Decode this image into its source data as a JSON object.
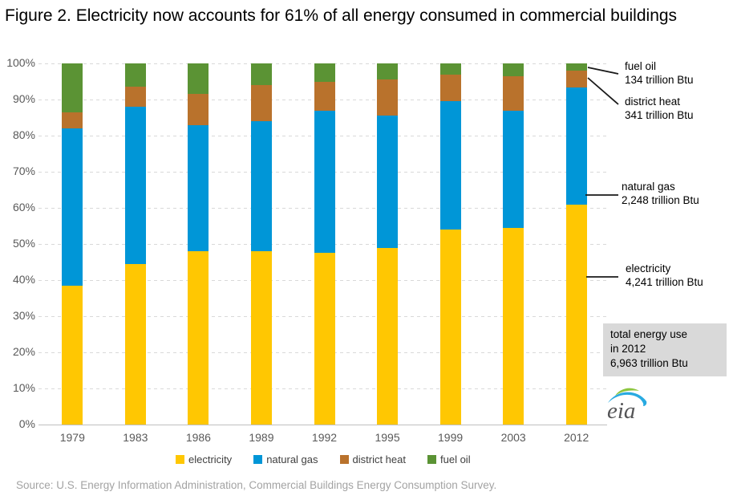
{
  "title": "Figure 2. Electricity now accounts for 61% of all energy consumed in commercial buildings",
  "source": "Source: U.S. Energy Information Administration, Commercial Buildings Energy Consumption Survey.",
  "chart_data": {
    "type": "bar",
    "stacked": true,
    "unit": "percent of total energy consumed",
    "categories": [
      "1979",
      "1983",
      "1986",
      "1989",
      "1992",
      "1995",
      "1999",
      "2003",
      "2012"
    ],
    "series": [
      {
        "name": "electricity",
        "color": "#ffc702",
        "values": [
          38.5,
          44.5,
          48.0,
          48.0,
          47.5,
          49.0,
          54.0,
          54.5,
          61.0
        ]
      },
      {
        "name": "natural gas",
        "color": "#0096d7",
        "values": [
          43.5,
          43.5,
          35.0,
          36.0,
          39.5,
          36.5,
          35.5,
          32.5,
          32.3
        ]
      },
      {
        "name": "district heat",
        "color": "#b9722c",
        "values": [
          4.5,
          5.5,
          8.5,
          10.0,
          8.0,
          10.0,
          7.5,
          9.5,
          4.8
        ]
      },
      {
        "name": "fuel oil",
        "color": "#5b9334",
        "values": [
          13.5,
          6.5,
          8.5,
          6.0,
          5.0,
          4.5,
          3.0,
          3.5,
          1.9
        ]
      }
    ],
    "ylim": [
      0,
      100
    ],
    "yticks": [
      "0%",
      "10%",
      "20%",
      "30%",
      "40%",
      "50%",
      "60%",
      "70%",
      "80%",
      "90%",
      "100%"
    ],
    "grid": true,
    "legend_position": "bottom"
  },
  "annotations": [
    {
      "label": "fuel oil",
      "value": "134 trillion Btu"
    },
    {
      "label": "district heat",
      "value": "341 trillion Btu"
    },
    {
      "label": "natural gas",
      "value": "2,248 trillion Btu"
    },
    {
      "label": "electricity",
      "value": "4,241 trillion Btu"
    }
  ],
  "note_box": {
    "line1": "total energy use",
    "line2": "in 2012",
    "line3": "6,963 trillion Btu"
  },
  "logo": {
    "text": "eia"
  },
  "colors": {
    "electricity": "#ffc702",
    "natural_gas": "#0096d7",
    "district_heat": "#b9722c",
    "fuel_oil": "#5b9334",
    "grid": "#d9d9d9",
    "axis_text": "#595959",
    "note_box_bg": "#d9d9d9",
    "source_text": "#a3a3a3"
  }
}
